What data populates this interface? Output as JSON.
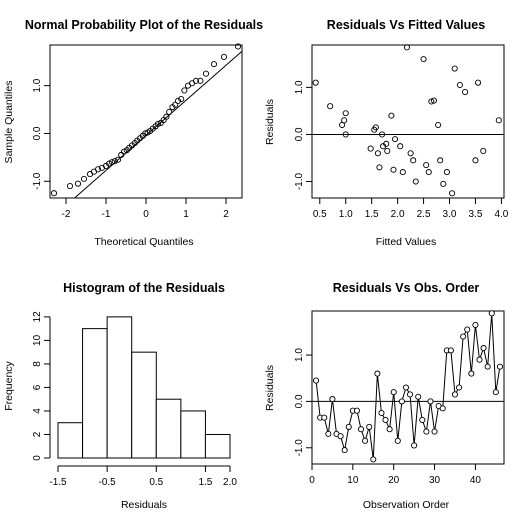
{
  "chart_data": [
    {
      "type": "scatter",
      "title": "Normal Probability Plot of the Residuals",
      "xlabel": "Theoretical Quantiles",
      "ylabel": "Sample Quantiles",
      "xlim": [
        -2.4,
        2.4
      ],
      "ylim": [
        -1.35,
        1.85
      ],
      "xticks": [
        -2,
        -1,
        0,
        1,
        2
      ],
      "xtick_labels": [
        "-2",
        "-1",
        "0",
        "1",
        "2"
      ],
      "yticks": [
        -1.0,
        0.0,
        1.0
      ],
      "ytick_labels": [
        "-1.0",
        "0.0",
        "1.0"
      ],
      "points": [
        [
          -2.3,
          -1.25
        ],
        [
          -1.9,
          -1.1
        ],
        [
          -1.7,
          -1.05
        ],
        [
          -1.55,
          -0.95
        ],
        [
          -1.4,
          -0.85
        ],
        [
          -1.3,
          -0.8
        ],
        [
          -1.2,
          -0.75
        ],
        [
          -1.1,
          -0.72
        ],
        [
          -1.0,
          -0.68
        ],
        [
          -0.92,
          -0.63
        ],
        [
          -0.85,
          -0.6
        ],
        [
          -0.78,
          -0.58
        ],
        [
          -0.7,
          -0.55
        ],
        [
          -0.62,
          -0.45
        ],
        [
          -0.55,
          -0.38
        ],
        [
          -0.48,
          -0.35
        ],
        [
          -0.42,
          -0.3
        ],
        [
          -0.35,
          -0.25
        ],
        [
          -0.28,
          -0.2
        ],
        [
          -0.22,
          -0.15
        ],
        [
          -0.15,
          -0.1
        ],
        [
          -0.08,
          -0.05
        ],
        [
          -0.02,
          0.0
        ],
        [
          0.04,
          0.02
        ],
        [
          0.1,
          0.05
        ],
        [
          0.17,
          0.1
        ],
        [
          0.24,
          0.15
        ],
        [
          0.3,
          0.2
        ],
        [
          0.37,
          0.22
        ],
        [
          0.44,
          0.28
        ],
        [
          0.51,
          0.35
        ],
        [
          0.58,
          0.45
        ],
        [
          0.66,
          0.55
        ],
        [
          0.73,
          0.6
        ],
        [
          0.8,
          0.68
        ],
        [
          0.88,
          0.72
        ],
        [
          0.96,
          0.9
        ],
        [
          1.05,
          1.0
        ],
        [
          1.15,
          1.05
        ],
        [
          1.25,
          1.1
        ],
        [
          1.36,
          1.1
        ],
        [
          1.5,
          1.25
        ],
        [
          1.7,
          1.45
        ],
        [
          1.95,
          1.6
        ],
        [
          2.3,
          1.82
        ]
      ],
      "reference_line": [
        [
          -2.4,
          -1.8
        ],
        [
          2.4,
          1.72
        ]
      ]
    },
    {
      "type": "scatter",
      "title": "Residuals Vs Fitted Values",
      "xlabel": "Fitted Values",
      "ylabel": "Residuals",
      "xlim": [
        0.35,
        4.05
      ],
      "ylim": [
        -1.35,
        1.9
      ],
      "xticks": [
        0.5,
        1.0,
        1.5,
        2.0,
        2.5,
        3.0,
        3.5,
        4.0
      ],
      "xtick_labels": [
        "0.5",
        "1.0",
        "1.5",
        "2.0",
        "2.5",
        "3.0",
        "3.5",
        "4.0"
      ],
      "yticks": [
        -1.0,
        0.0,
        1.0
      ],
      "ytick_labels": [
        "-1.0",
        "0.0",
        "1.0"
      ],
      "hline": 0,
      "points": [
        [
          0.42,
          1.1
        ],
        [
          0.7,
          0.6
        ],
        [
          0.93,
          0.2
        ],
        [
          0.97,
          0.3
        ],
        [
          1.0,
          0.45
        ],
        [
          1.0,
          0.0
        ],
        [
          1.48,
          -0.3
        ],
        [
          1.55,
          0.1
        ],
        [
          1.58,
          0.15
        ],
        [
          1.62,
          -0.4
        ],
        [
          1.65,
          -0.7
        ],
        [
          1.7,
          0.0
        ],
        [
          1.72,
          -0.25
        ],
        [
          1.78,
          -0.2
        ],
        [
          1.8,
          -0.35
        ],
        [
          1.88,
          0.4
        ],
        [
          1.92,
          -0.75
        ],
        [
          1.95,
          -0.1
        ],
        [
          2.05,
          -0.25
        ],
        [
          2.1,
          -0.8
        ],
        [
          2.18,
          1.85
        ],
        [
          2.25,
          -0.4
        ],
        [
          2.3,
          -0.55
        ],
        [
          2.35,
          -1.0
        ],
        [
          2.5,
          1.6
        ],
        [
          2.55,
          -0.65
        ],
        [
          2.6,
          -0.8
        ],
        [
          2.65,
          0.7
        ],
        [
          2.7,
          0.72
        ],
        [
          2.78,
          0.2
        ],
        [
          2.82,
          -0.55
        ],
        [
          2.88,
          -1.05
        ],
        [
          2.95,
          -0.8
        ],
        [
          3.05,
          -1.25
        ],
        [
          3.1,
          1.4
        ],
        [
          3.2,
          1.05
        ],
        [
          3.3,
          0.9
        ],
        [
          3.5,
          -0.55
        ],
        [
          3.55,
          1.1
        ],
        [
          3.65,
          -0.35
        ],
        [
          3.95,
          0.3
        ]
      ]
    },
    {
      "type": "bar",
      "title": "Histogram of the Residuals",
      "xlabel": "Residuals",
      "ylabel": "Frequency",
      "bin_edges": [
        -1.5,
        -1.0,
        -0.5,
        0.0,
        0.5,
        1.0,
        1.5,
        2.0
      ],
      "values": [
        3,
        11,
        12,
        9,
        5,
        4,
        2
      ],
      "xlim": [
        -1.5,
        2.0
      ],
      "ylim": [
        0,
        12.5
      ],
      "xticks": [
        -1.5,
        -0.5,
        0.5,
        1.5,
        2.0
      ],
      "xtick_labels": [
        "-1.5",
        "-0.5",
        "0.5",
        "1.5",
        "2.0"
      ],
      "yticks": [
        0,
        2,
        4,
        6,
        8,
        10,
        12
      ],
      "ytick_labels": [
        "0",
        "2",
        "4",
        "6",
        "8",
        "10",
        "12"
      ]
    },
    {
      "type": "line",
      "title": "Residuals Vs Obs. Order",
      "xlabel": "Observation Order",
      "ylabel": "Residuals",
      "xlim": [
        0,
        47
      ],
      "ylim": [
        -1.35,
        1.95
      ],
      "xticks": [
        0,
        10,
        20,
        30,
        40
      ],
      "xtick_labels": [
        "0",
        "10",
        "20",
        "30",
        "40"
      ],
      "yticks": [
        -1.0,
        0.0,
        1.0
      ],
      "ytick_labels": [
        "-1.0",
        "0.0",
        "1.0"
      ],
      "hline": 0,
      "x": [
        1,
        2,
        3,
        4,
        5,
        6,
        7,
        8,
        9,
        10,
        11,
        12,
        13,
        14,
        15,
        16,
        17,
        18,
        19,
        20,
        21,
        22,
        23,
        24,
        25,
        26,
        27,
        28,
        29,
        30,
        31,
        32,
        33,
        34,
        35,
        36,
        37,
        38,
        39,
        40,
        41,
        42,
        43,
        44,
        45,
        46
      ],
      "values": [
        0.45,
        -0.35,
        -0.35,
        -0.7,
        0.05,
        -0.7,
        -0.75,
        -1.05,
        -0.55,
        -0.2,
        -0.2,
        -0.6,
        -0.85,
        -0.55,
        -1.25,
        0.6,
        -0.25,
        -0.4,
        -0.6,
        0.2,
        -0.85,
        0.0,
        0.3,
        0.15,
        -0.95,
        0.1,
        -0.4,
        -0.65,
        0.0,
        -0.65,
        -0.1,
        -0.15,
        1.1,
        1.1,
        0.15,
        0.3,
        1.4,
        1.55,
        0.6,
        1.65,
        0.9,
        1.15,
        0.75,
        1.9,
        0.2,
        0.75
      ]
    }
  ]
}
